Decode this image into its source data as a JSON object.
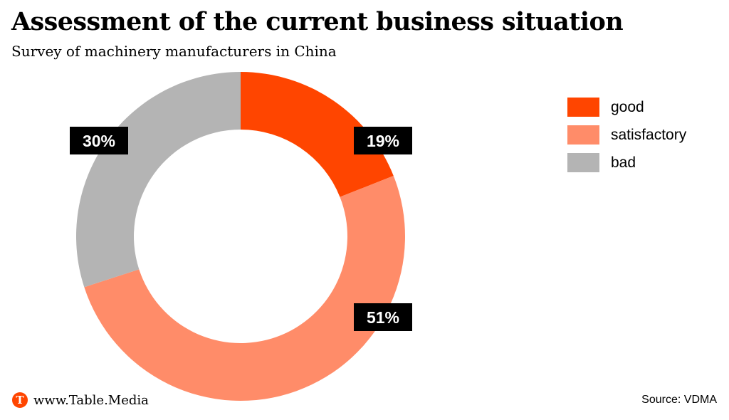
{
  "chart_data": {
    "type": "pie",
    "variant": "donut",
    "title": "Assessment of the current business situation",
    "subtitle": "Survey of machinery manufacturers in China",
    "categories": [
      "good",
      "satisfactory",
      "bad"
    ],
    "values": [
      19,
      51,
      30
    ],
    "data_labels": [
      "19%",
      "51%",
      "30%"
    ],
    "colors": [
      "#ff4500",
      "#ff8c69",
      "#b4b4b4"
    ],
    "legend_position": "right"
  },
  "footer": {
    "brand": "www.Table.Media",
    "brand_icon_letter": "T",
    "brand_icon": "table-media-logo-icon",
    "source_label": "Source:",
    "source_value": "VDMA"
  }
}
